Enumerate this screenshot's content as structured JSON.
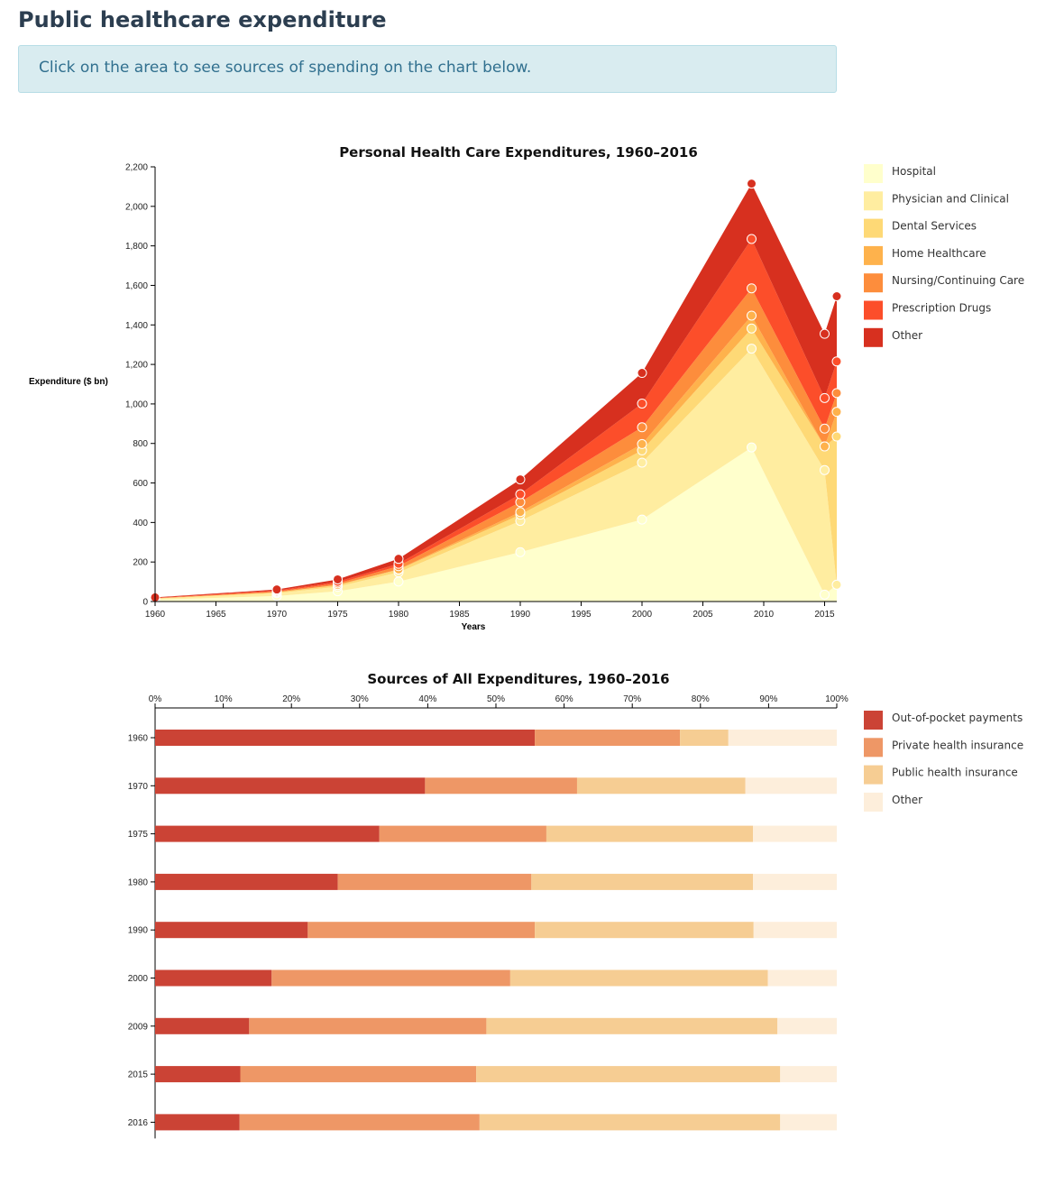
{
  "page": {
    "title": "Public healthcare expenditure",
    "info": "Click on the area to see sources of spending on the chart below."
  },
  "chart_data": [
    {
      "type": "area",
      "stacked": true,
      "title": "Personal Health Care Expenditures, 1960–2016",
      "xlabel": "Years",
      "ylabel": "Expenditure ($ bn)",
      "xlim": [
        1960,
        2016
      ],
      "ylim": [
        0,
        2200
      ],
      "x_ticks": [
        1960,
        1965,
        1970,
        1975,
        1980,
        1985,
        1990,
        1995,
        2000,
        2005,
        2010,
        2015
      ],
      "y_ticks": [
        0,
        200,
        400,
        600,
        800,
        1000,
        1200,
        1400,
        1600,
        1800,
        2000,
        2200
      ],
      "grid": false,
      "legend_position": "right",
      "x": [
        1960,
        1970,
        1975,
        1980,
        1990,
        2000,
        2009,
        2015,
        2016
      ],
      "series": [
        {
          "name": "Hospital",
          "color": "#ffffcc",
          "values": [
            9,
            28,
            52,
            101,
            250,
            415,
            780,
            35,
            85
          ]
        },
        {
          "name": "Physician and Clinical",
          "color": "#ffeda0",
          "values": [
            5,
            14,
            23,
            47,
            158,
            288,
            500,
            630,
            0
          ]
        },
        {
          "name": "Dental Services",
          "color": "#fed976",
          "values": [
            2,
            5,
            8,
            13,
            32,
            62,
            102,
            120,
            750
          ]
        },
        {
          "name": "Home Healthcare",
          "color": "#feb24c",
          "values": [
            0,
            0,
            1,
            2,
            13,
            32,
            65,
            0,
            125
          ]
        },
        {
          "name": "Nursing/Continuing Care",
          "color": "#fd8d3c",
          "values": [
            1,
            4,
            8,
            16,
            50,
            85,
            138,
            90,
            95
          ]
        },
        {
          "name": "Prescription Drugs",
          "color": "#fc4e2a",
          "values": [
            2,
            5,
            8,
            12,
            40,
            120,
            250,
            155,
            160
          ]
        },
        {
          "name": "Other",
          "color": "#d7301f",
          "values": [
            2,
            5,
            12,
            25,
            75,
            155,
            280,
            325,
            330
          ]
        }
      ]
    },
    {
      "type": "bar",
      "orientation": "horizontal",
      "stacked": true,
      "title": "Sources of All Expenditures, 1960–2016",
      "xlim": [
        0,
        100
      ],
      "x_ticks": [
        "0%",
        "10%",
        "20%",
        "30%",
        "40%",
        "50%",
        "60%",
        "70%",
        "80%",
        "90%",
        "100%"
      ],
      "legend_position": "right",
      "categories": [
        "1960",
        "1970",
        "1975",
        "1980",
        "1990",
        "2000",
        "2009",
        "2015",
        "2016"
      ],
      "series": [
        {
          "name": "Out-of-pocket payments",
          "color": "#cb4335",
          "values": [
            55.7,
            39.6,
            32.9,
            26.8,
            22.4,
            17.1,
            13.8,
            12.5,
            12.4
          ]
        },
        {
          "name": "Private health insurance",
          "color": "#ee9766",
          "values": [
            21.3,
            22.3,
            24.5,
            28.4,
            33.3,
            35.0,
            34.8,
            34.6,
            35.2
          ]
        },
        {
          "name": "Public health insurance",
          "color": "#f6cd93",
          "values": [
            7.1,
            24.7,
            30.3,
            32.5,
            32.1,
            37.8,
            42.7,
            44.6,
            44.1
          ]
        },
        {
          "name": "Other",
          "color": "#fdeedb",
          "values": [
            15.9,
            13.4,
            12.3,
            12.3,
            12.2,
            10.1,
            8.7,
            8.3,
            8.3
          ]
        }
      ]
    }
  ]
}
